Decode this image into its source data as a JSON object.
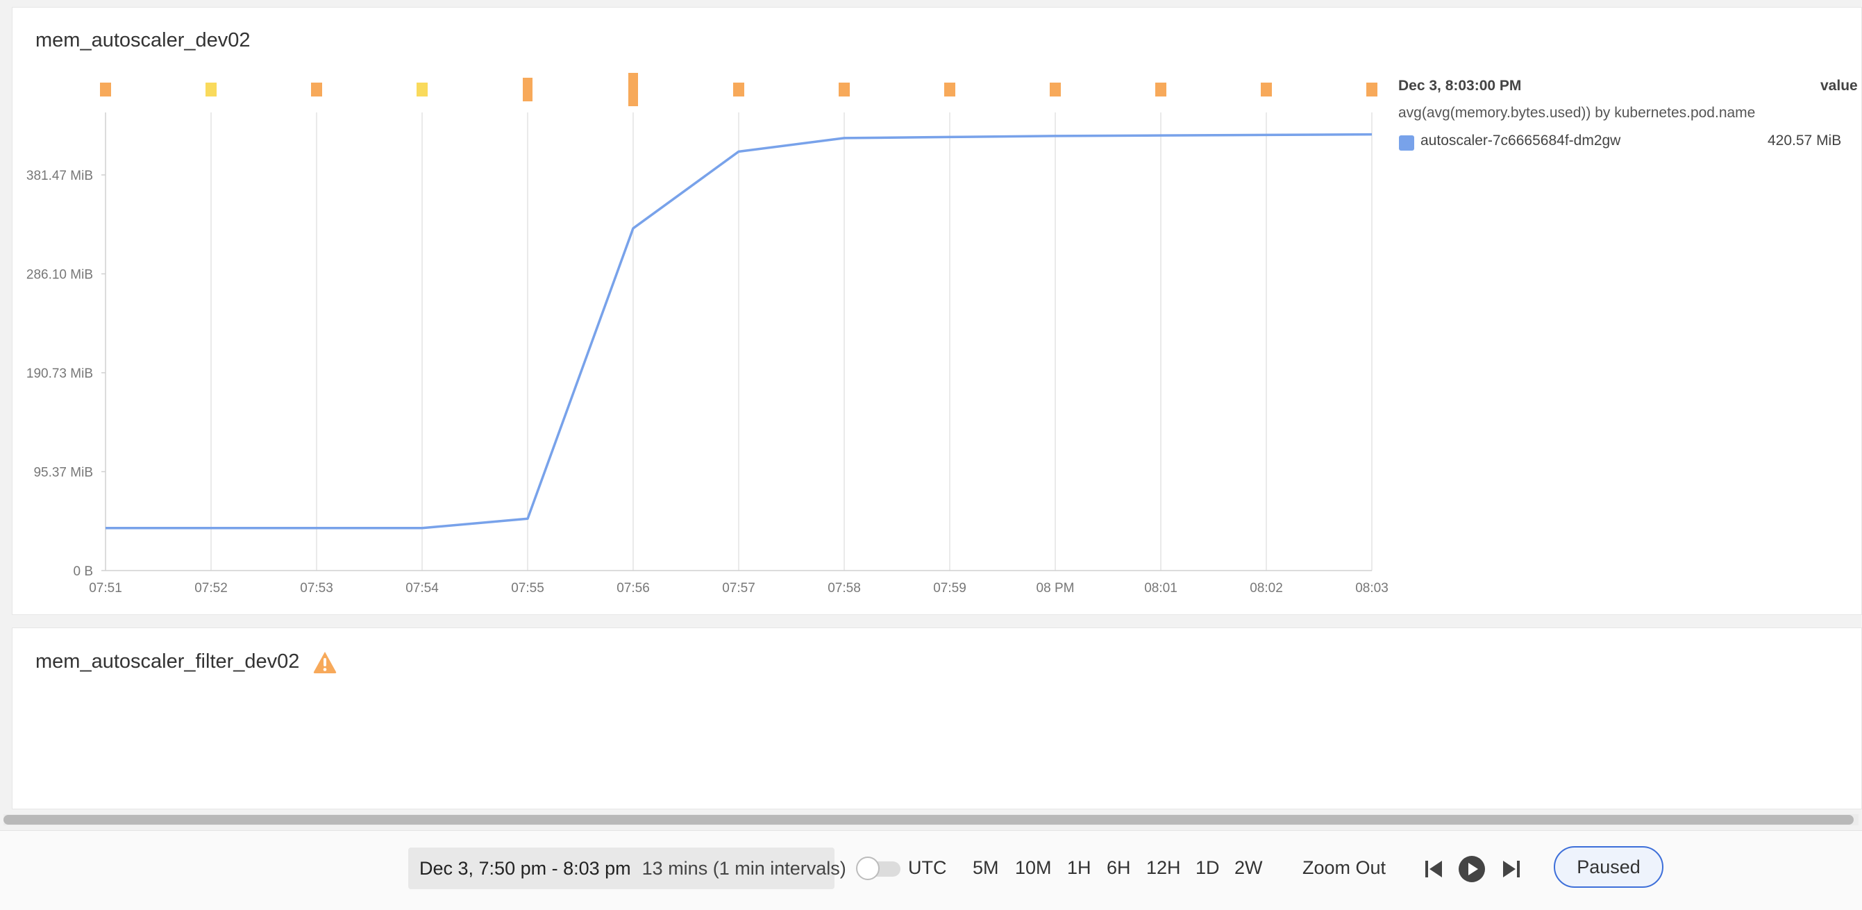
{
  "panel1": {
    "title": "mem_autoscaler_dev02"
  },
  "panel2": {
    "title": "mem_autoscaler_filter_dev02",
    "warning_icon": "warning-triangle-icon"
  },
  "legend": {
    "time": "Dec 3, 8:03:00 PM",
    "value_header": "value",
    "query": "avg(avg(memory.bytes.used)) by kubernetes.pod.name",
    "series": [
      {
        "name": "autoscaler-7c6665684f-dm2gw",
        "value": "420.57 MiB",
        "color": "#78a2ea"
      }
    ]
  },
  "chart_data": {
    "type": "line",
    "x": [
      "07:51",
      "07:52",
      "07:53",
      "07:54",
      "07:55",
      "07:56",
      "07:57",
      "07:58",
      "07:59",
      "08 PM",
      "08:01",
      "08:02",
      "08:03"
    ],
    "series": [
      {
        "name": "autoscaler-7c6665684f-dm2gw",
        "color": "#78a2ea",
        "values": [
          41,
          41,
          41,
          41,
          50,
          330,
          404,
          417,
          418,
          419,
          419.5,
          420,
          420.57
        ]
      }
    ],
    "y_ticks": [
      "0 B",
      "95.37 MiB",
      "190.73 MiB",
      "286.10 MiB",
      "381.47 MiB"
    ],
    "y_tick_values": [
      0,
      95.37,
      190.73,
      286.1,
      381.47
    ],
    "ylim": [
      0,
      440
    ],
    "grid": "vertical",
    "event_markers": [
      {
        "x": "07:51",
        "color": "#f7a95a",
        "level": 1
      },
      {
        "x": "07:52",
        "color": "#f9da5c",
        "level": 1
      },
      {
        "x": "07:53",
        "color": "#f7a95a",
        "level": 1
      },
      {
        "x": "07:54",
        "color": "#f9da5c",
        "level": 1
      },
      {
        "x": "07:55",
        "color": "#f7a95a",
        "level": 2
      },
      {
        "x": "07:56",
        "color": "#f7a95a",
        "level": 3
      },
      {
        "x": "07:57",
        "color": "#f7a95a",
        "level": 1
      },
      {
        "x": "07:58",
        "color": "#f7a95a",
        "level": 1
      },
      {
        "x": "07:59",
        "color": "#f7a95a",
        "level": 1
      },
      {
        "x": "08 PM",
        "color": "#f7a95a",
        "level": 1
      },
      {
        "x": "08:01",
        "color": "#f7a95a",
        "level": 1
      },
      {
        "x": "08:02",
        "color": "#f7a95a",
        "level": 1
      },
      {
        "x": "08:03",
        "color": "#f7a95a",
        "level": 1
      }
    ]
  },
  "timebar": {
    "range": "Dec 3, 7:50 pm - 8:03 pm",
    "interval": "13 mins (1 min intervals)",
    "utc_label": "UTC",
    "ranges": [
      "5M",
      "10M",
      "1H",
      "6H",
      "12H",
      "1D",
      "2W"
    ],
    "zoom_out": "Zoom Out",
    "paused": "Paused",
    "icons": [
      "skip-back-icon",
      "play-icon",
      "skip-forward-icon"
    ]
  }
}
